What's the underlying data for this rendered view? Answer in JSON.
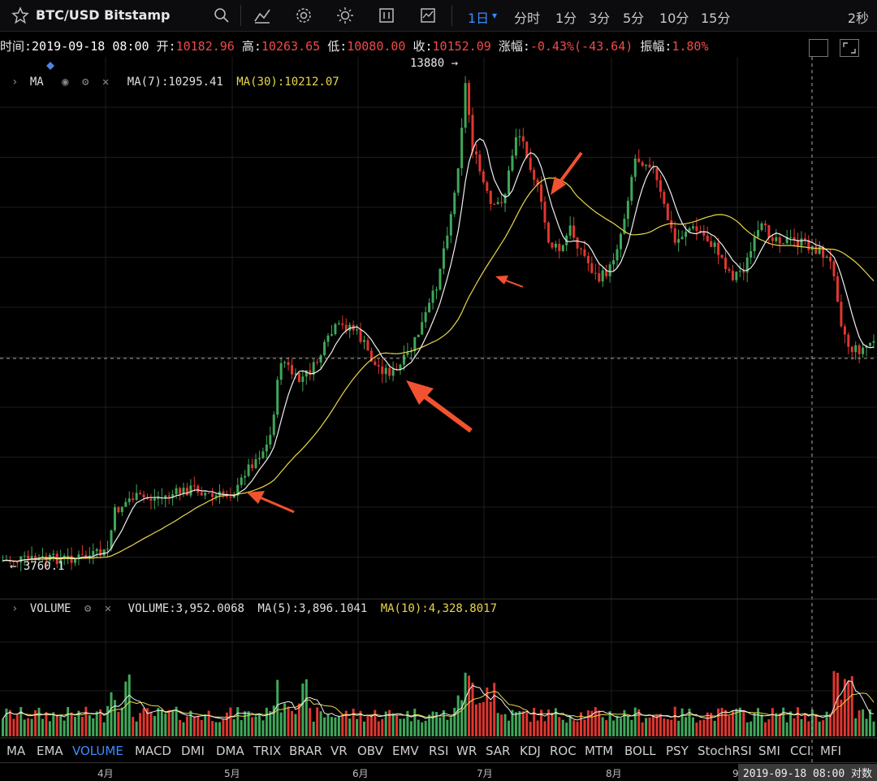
{
  "toolbar": {
    "symbol_title": "BTC/USD Bitstamp",
    "resolutions": [
      "1日",
      "分时",
      "1分",
      "3分",
      "5分",
      "10分",
      "15分"
    ],
    "active_resolution": "1日",
    "refresh": "2秒",
    "icons": [
      "star-icon",
      "search-icon",
      "indicators-icon",
      "settings-icon",
      "theme-icon",
      "fullscreen-chart-icon",
      "screenshot-icon"
    ]
  },
  "ohlc": {
    "time_label": "时间:",
    "time": "2019-09-18 08:00",
    "open_label": "开:",
    "open": "10182.96",
    "high_label": "高:",
    "high": "10263.65",
    "low_label": "低:",
    "low": "10080.00",
    "close_label": "收:",
    "close": "10152.09",
    "change_label": "涨幅:",
    "change": "-0.43%(-43.64)",
    "amplitude_label": "振幅:",
    "amplitude": "1.80%"
  },
  "ma_legend": {
    "name": "MA",
    "ma7_label": "MA(7):",
    "ma7": "10295.41",
    "ma30_label": "MA(30):",
    "ma30": "10212.07"
  },
  "volume_legend": {
    "name": "VOLUME",
    "vol_label": "VOLUME:",
    "vol": "3,952.0068",
    "ma5_label": "MA(5):",
    "ma5": "3,896.1041",
    "ma10_label": "MA(10):",
    "ma10": "4,328.8017"
  },
  "price_marks": {
    "high_tag": "13880",
    "low_tag": "3760.1"
  },
  "indicator_tabs": [
    "MA",
    "EMA",
    "VOLUME",
    "MACD",
    "DMI",
    "DMA",
    "TRIX",
    "BRAR",
    "VR",
    "OBV",
    "EMV",
    "RSI",
    "WR",
    "SAR",
    "KDJ",
    "ROC",
    "MTM",
    "BOLL",
    "PSY",
    "StochRSI",
    "SMI",
    "CCI",
    "MFI"
  ],
  "active_indicator": "VOLUME",
  "x_axis": {
    "labels": [
      "4月",
      "5月",
      "6月",
      "7月",
      "8月",
      "9月"
    ],
    "crosshair_time": "2019-09-18 08:00",
    "trailing": "对数"
  },
  "colors": {
    "up": "#3fa75a",
    "down": "#e0362f",
    "ma7": "#f0f0f0",
    "ma30": "#e9d74a",
    "accent": "#3d8bff",
    "arrow": "#f2522f"
  }
}
